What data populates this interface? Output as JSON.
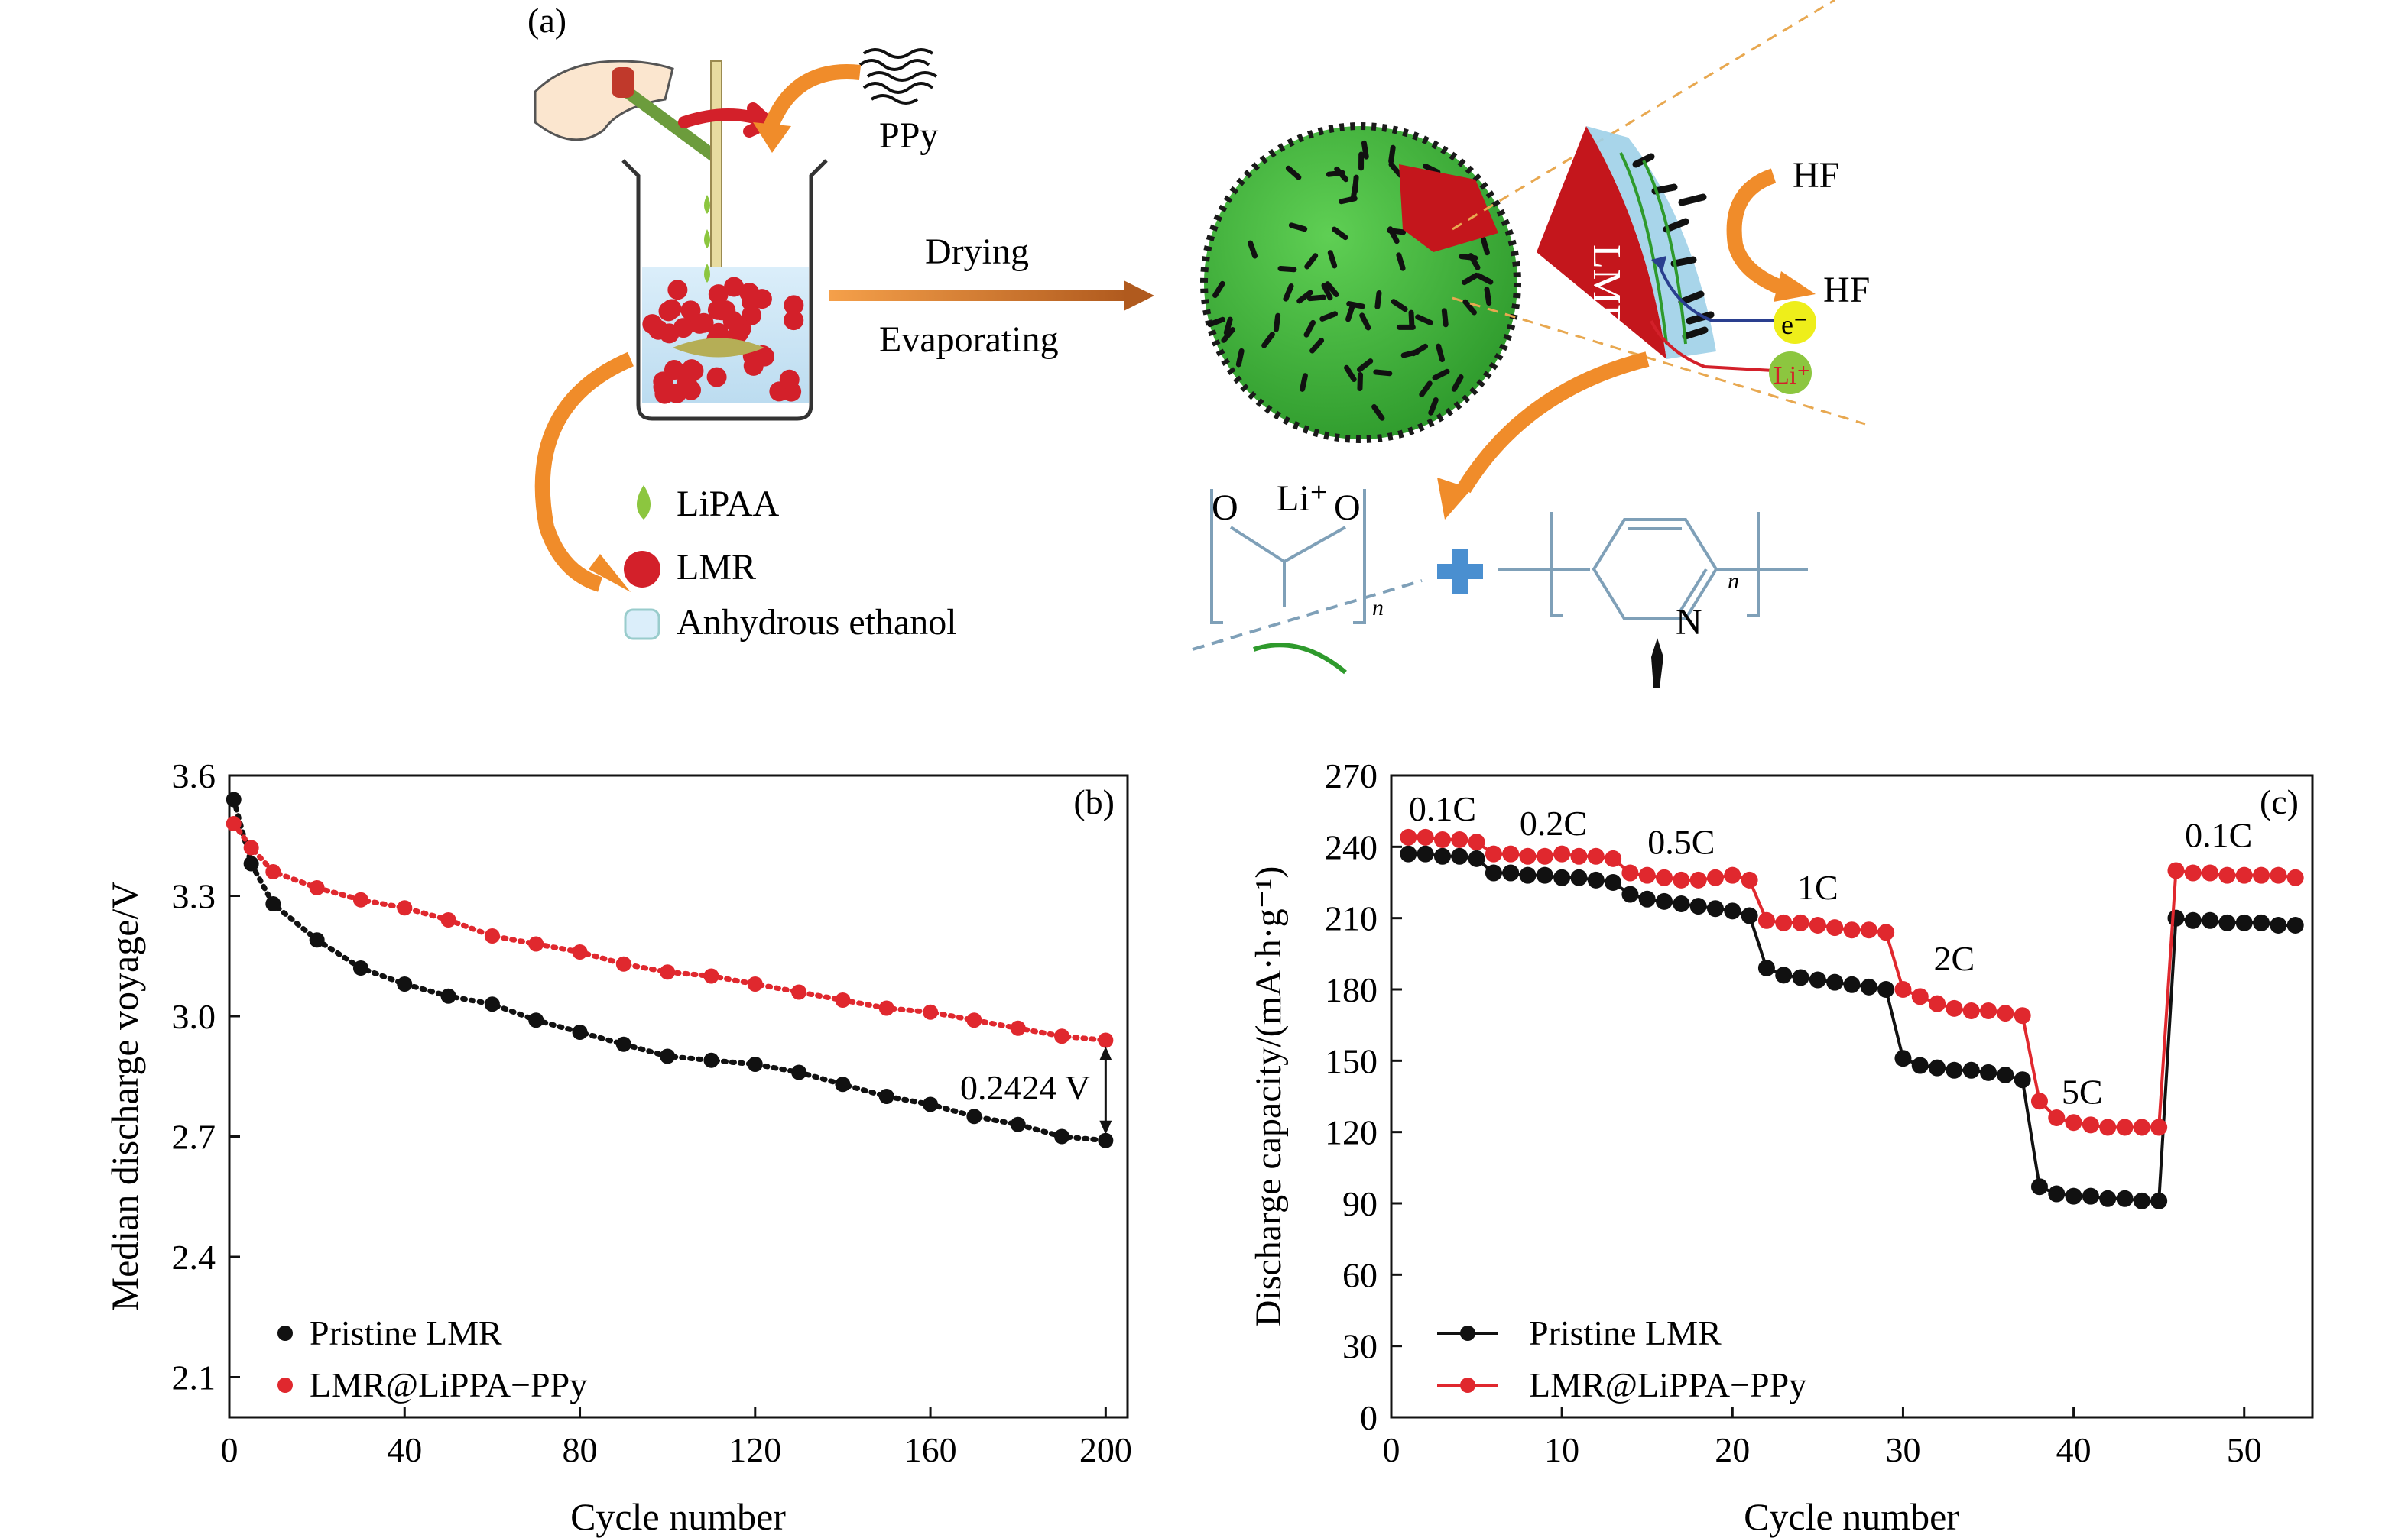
{
  "panel_a": {
    "label": "(a)",
    "ppy_label": "PPy",
    "drying_label": "Drying",
    "evaporating_label": "Evaporating",
    "legend": [
      "LiPAA",
      "LMR",
      "Anhydrous ethanol"
    ],
    "lmr_label": "LMR",
    "hf_top": "HF",
    "hf_bottom": "HF",
    "electron_label": "e⁻",
    "lithium_label": "Li⁺",
    "structure_o_left": "O",
    "structure_li": "Li⁺",
    "structure_o_right": "O",
    "structure_n_left": "n",
    "structure_nitrogen": "N",
    "structure_n_right": "n",
    "colors": {
      "sphere": "#3fae3a",
      "lmr": "#d3202a",
      "arrow": "#f08c2a",
      "liPAA": "#8cc63f"
    }
  },
  "chart_data": [
    {
      "panel": "(b)",
      "type": "scatter",
      "xlabel": "Cycle number",
      "ylabel": "Median discharge voyage/V",
      "xlim": [
        0,
        205
      ],
      "ylim": [
        2.0,
        3.6
      ],
      "xticks": [
        "0",
        "40",
        "80",
        "120",
        "160",
        "200"
      ],
      "yticks": [
        "2.1",
        "2.4",
        "2.7",
        "3.0",
        "3.3",
        "3.6"
      ],
      "legend_position": "bottom-left",
      "annotation": "0.2424 V",
      "annotation_x": 200,
      "annotation_y": [
        2.69,
        2.94
      ],
      "series": [
        {
          "name": "Pristine LMR",
          "color": "#111111",
          "x": [
            1,
            5,
            10,
            20,
            30,
            40,
            50,
            60,
            70,
            80,
            90,
            100,
            110,
            120,
            130,
            140,
            150,
            160,
            170,
            180,
            190,
            200
          ],
          "y": [
            3.54,
            3.38,
            3.28,
            3.19,
            3.12,
            3.08,
            3.05,
            3.03,
            2.99,
            2.96,
            2.93,
            2.9,
            2.89,
            2.88,
            2.86,
            2.83,
            2.8,
            2.78,
            2.75,
            2.73,
            2.7,
            2.69
          ]
        },
        {
          "name": "LMR@LiPPA−PPy",
          "color": "#e0282e",
          "x": [
            1,
            5,
            10,
            20,
            30,
            40,
            50,
            60,
            70,
            80,
            90,
            100,
            110,
            120,
            130,
            140,
            150,
            160,
            170,
            180,
            190,
            200
          ],
          "y": [
            3.48,
            3.42,
            3.36,
            3.32,
            3.29,
            3.27,
            3.24,
            3.2,
            3.18,
            3.16,
            3.13,
            3.11,
            3.1,
            3.08,
            3.06,
            3.04,
            3.02,
            3.01,
            2.99,
            2.97,
            2.95,
            2.94
          ]
        }
      ]
    },
    {
      "panel": "(c)",
      "type": "line",
      "xlabel": "Cycle number",
      "ylabel": "Discharge capacity/(mA·h·g⁻¹)",
      "xlim": [
        0,
        54
      ],
      "ylim": [
        0,
        270
      ],
      "xticks": [
        "0",
        "10",
        "20",
        "30",
        "40",
        "50"
      ],
      "yticks": [
        "0",
        "30",
        "60",
        "90",
        "120",
        "150",
        "180",
        "210",
        "240",
        "270"
      ],
      "legend_position": "bottom-left",
      "rate_labels": [
        {
          "text": "0.1C",
          "x": 3,
          "y": 251
        },
        {
          "text": "0.2C",
          "x": 9.5,
          "y": 245
        },
        {
          "text": "0.5C",
          "x": 17,
          "y": 237
        },
        {
          "text": "1C",
          "x": 25,
          "y": 218
        },
        {
          "text": "2C",
          "x": 33,
          "y": 188
        },
        {
          "text": "5C",
          "x": 40.5,
          "y": 132
        },
        {
          "text": "0.1C",
          "x": 48.5,
          "y": 240
        }
      ],
      "series": [
        {
          "name": "Pristine LMR",
          "color": "#111111",
          "x": [
            1,
            2,
            3,
            4,
            5,
            6,
            7,
            8,
            9,
            10,
            11,
            12,
            13,
            14,
            15,
            16,
            17,
            18,
            19,
            20,
            21,
            22,
            23,
            24,
            25,
            26,
            27,
            28,
            29,
            30,
            31,
            32,
            33,
            34,
            35,
            36,
            37,
            38,
            39,
            40,
            41,
            42,
            43,
            44,
            45,
            46,
            47,
            48,
            49,
            50,
            51,
            52,
            53
          ],
          "y": [
            237,
            237,
            236,
            236,
            235,
            229,
            229,
            228,
            228,
            227,
            227,
            226,
            225,
            220,
            218,
            217,
            216,
            215,
            214,
            213,
            211,
            189,
            186,
            185,
            184,
            183,
            182,
            181,
            180,
            151,
            148,
            147,
            146,
            146,
            145,
            144,
            142,
            97,
            94,
            93,
            93,
            92,
            92,
            91,
            91,
            210,
            209,
            209,
            208,
            208,
            208,
            207,
            207
          ]
        },
        {
          "name": "LMR@LiPPA−PPy",
          "color": "#e0282e",
          "x": [
            1,
            2,
            3,
            4,
            5,
            6,
            7,
            8,
            9,
            10,
            11,
            12,
            13,
            14,
            15,
            16,
            17,
            18,
            19,
            20,
            21,
            22,
            23,
            24,
            25,
            26,
            27,
            28,
            29,
            30,
            31,
            32,
            33,
            34,
            35,
            36,
            37,
            38,
            39,
            40,
            41,
            42,
            43,
            44,
            45,
            46,
            47,
            48,
            49,
            50,
            51,
            52,
            53
          ],
          "y": [
            244,
            244,
            243,
            243,
            242,
            237,
            237,
            236,
            236,
            237,
            236,
            236,
            235,
            229,
            228,
            227,
            226,
            226,
            227,
            228,
            226,
            209,
            208,
            208,
            207,
            206,
            205,
            205,
            204,
            180,
            177,
            174,
            172,
            171,
            171,
            170,
            169,
            133,
            126,
            124,
            123,
            122,
            122,
            122,
            122,
            230,
            229,
            229,
            228,
            228,
            228,
            228,
            227
          ]
        }
      ]
    }
  ]
}
